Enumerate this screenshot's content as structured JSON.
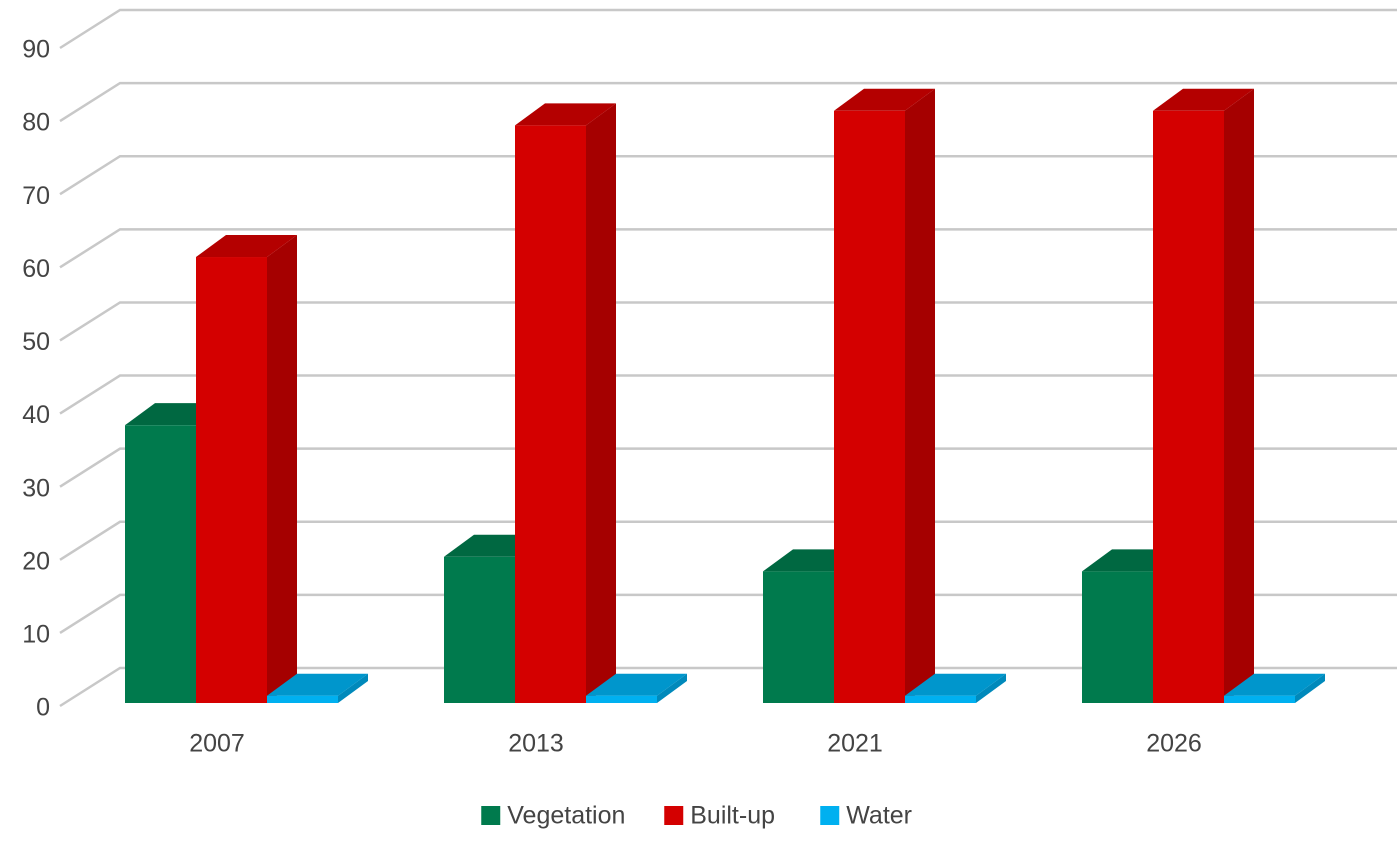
{
  "chart_data": {
    "type": "bar3d",
    "categories": [
      "2007",
      "2013",
      "2021",
      "2026"
    ],
    "series": [
      {
        "name": "Vegetation",
        "color": "#007a4d",
        "values": [
          38,
          20,
          18,
          18
        ]
      },
      {
        "name": "Built-up",
        "color": "#d40000",
        "values": [
          61,
          79,
          81,
          81
        ]
      },
      {
        "name": "Water",
        "color": "#00b0f0",
        "values": [
          1,
          1,
          1,
          1
        ]
      }
    ],
    "ylim": [
      0,
      90
    ],
    "yticks": [
      0,
      10,
      20,
      30,
      40,
      50,
      60,
      70,
      80,
      90
    ],
    "grid": true
  }
}
